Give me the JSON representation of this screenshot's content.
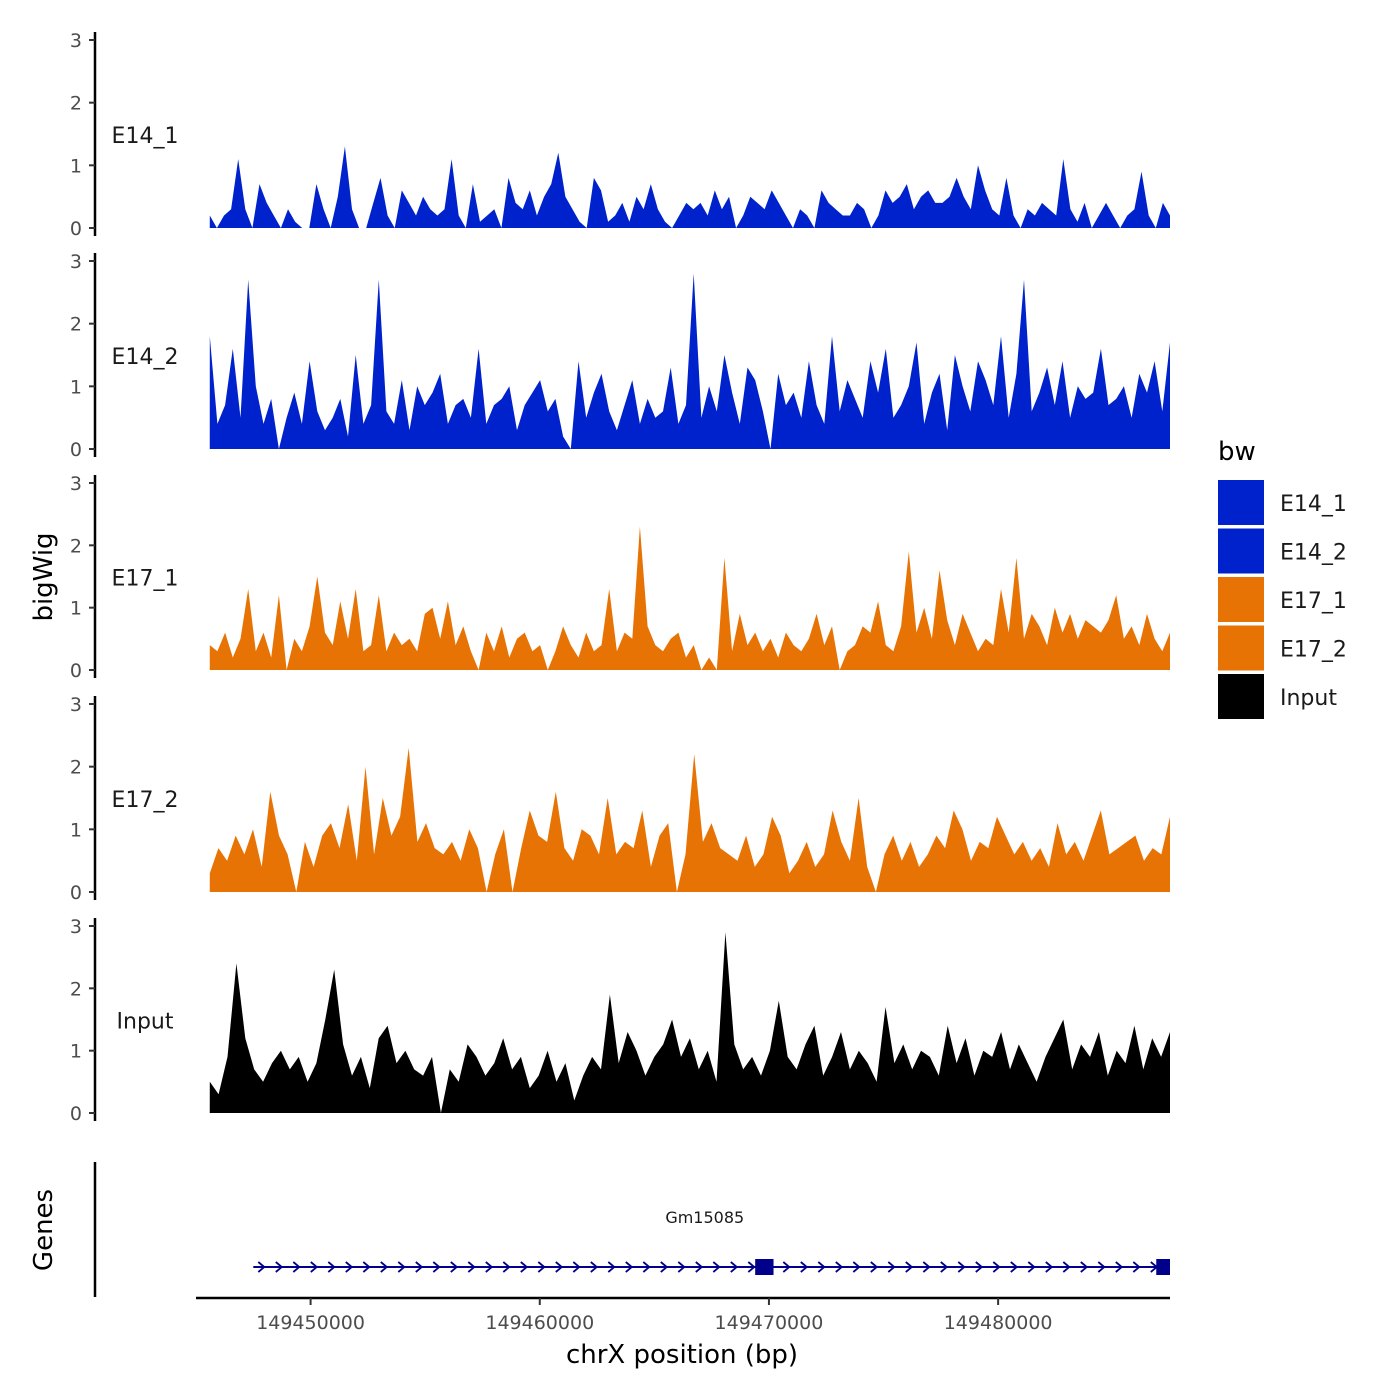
{
  "chart_data": {
    "type": "area",
    "chromosome": "chrX",
    "xlabel": "chrX position (bp)",
    "ylabel": "bigWig",
    "genes_label": "Genes",
    "xlim": [
      149445000,
      149487500
    ],
    "data_xrange": [
      149445600,
      149487500
    ],
    "xticks": [
      149450000,
      149460000,
      149470000,
      149480000
    ],
    "xtick_labels": [
      "149450000",
      "149460000",
      "149470000",
      "149480000"
    ],
    "ylim": [
      0,
      3
    ],
    "yticks": [
      0,
      1,
      2,
      3
    ],
    "ytick_labels": [
      "0",
      "1",
      "2",
      "3"
    ],
    "legend": {
      "title": "bw",
      "position": "right",
      "entries": [
        {
          "label": "E14_1",
          "color": "#0022CC"
        },
        {
          "label": "E14_2",
          "color": "#0022CC"
        },
        {
          "label": "E17_1",
          "color": "#E87305"
        },
        {
          "label": "E17_2",
          "color": "#E87305"
        },
        {
          "label": "Input",
          "color": "#000000"
        }
      ]
    },
    "series": [
      {
        "name": "E14_1",
        "color": "#0022CC",
        "values": [
          0.2,
          0.0,
          0.2,
          0.3,
          1.1,
          0.3,
          0.0,
          0.7,
          0.4,
          0.2,
          0.0,
          0.3,
          0.1,
          0.0,
          0.0,
          0.7,
          0.3,
          0.0,
          0.5,
          1.3,
          0.3,
          0.0,
          0.0,
          0.4,
          0.8,
          0.2,
          0.0,
          0.6,
          0.4,
          0.2,
          0.5,
          0.3,
          0.2,
          0.3,
          1.1,
          0.2,
          0.0,
          0.7,
          0.1,
          0.2,
          0.3,
          0.0,
          0.8,
          0.4,
          0.3,
          0.6,
          0.2,
          0.5,
          0.7,
          1.2,
          0.5,
          0.3,
          0.1,
          0.0,
          0.8,
          0.6,
          0.1,
          0.2,
          0.4,
          0.1,
          0.5,
          0.3,
          0.7,
          0.3,
          0.1,
          0.0,
          0.2,
          0.4,
          0.3,
          0.4,
          0.2,
          0.6,
          0.3,
          0.5,
          0.0,
          0.2,
          0.5,
          0.4,
          0.3,
          0.6,
          0.4,
          0.2,
          0.0,
          0.3,
          0.2,
          0.0,
          0.6,
          0.4,
          0.3,
          0.2,
          0.2,
          0.4,
          0.3,
          0.0,
          0.2,
          0.6,
          0.4,
          0.5,
          0.7,
          0.3,
          0.5,
          0.6,
          0.4,
          0.4,
          0.5,
          0.8,
          0.5,
          0.3,
          1.0,
          0.6,
          0.3,
          0.2,
          0.8,
          0.2,
          0.0,
          0.3,
          0.2,
          0.4,
          0.3,
          0.2,
          1.1,
          0.3,
          0.1,
          0.4,
          0.0,
          0.2,
          0.4,
          0.2,
          0.0,
          0.2,
          0.3,
          0.9,
          0.2,
          0.0,
          0.4,
          0.2
        ]
      },
      {
        "name": "E14_2",
        "color": "#0022CC",
        "values": [
          1.8,
          0.4,
          0.7,
          1.6,
          0.5,
          2.7,
          1.0,
          0.4,
          0.8,
          0.0,
          0.5,
          0.9,
          0.4,
          1.4,
          0.6,
          0.3,
          0.5,
          0.8,
          0.2,
          1.5,
          0.4,
          0.7,
          2.7,
          0.6,
          0.4,
          1.1,
          0.3,
          1.0,
          0.7,
          0.9,
          1.2,
          0.4,
          0.7,
          0.8,
          0.5,
          1.6,
          0.4,
          0.7,
          0.8,
          1.0,
          0.3,
          0.7,
          0.9,
          1.1,
          0.6,
          0.8,
          0.2,
          0.0,
          1.4,
          0.5,
          0.9,
          1.2,
          0.6,
          0.3,
          0.7,
          1.1,
          0.4,
          0.8,
          0.5,
          0.6,
          1.3,
          0.4,
          0.7,
          2.8,
          0.5,
          1.0,
          0.6,
          1.5,
          0.9,
          0.4,
          1.3,
          1.1,
          0.6,
          0.0,
          1.2,
          0.7,
          0.9,
          0.5,
          1.4,
          0.7,
          0.4,
          1.8,
          0.6,
          1.1,
          0.8,
          0.5,
          1.4,
          0.9,
          1.6,
          0.5,
          0.7,
          1.0,
          1.7,
          0.4,
          0.9,
          1.2,
          0.3,
          1.5,
          1.0,
          0.6,
          1.4,
          1.1,
          0.7,
          1.8,
          0.5,
          1.2,
          2.7,
          0.6,
          0.9,
          1.3,
          0.7,
          1.4,
          0.5,
          1.0,
          0.8,
          0.9,
          1.6,
          0.7,
          0.8,
          1.0,
          0.5,
          1.2,
          0.9,
          1.4,
          0.6,
          1.7
        ]
      },
      {
        "name": "E17_1",
        "color": "#E87305",
        "values": [
          0.4,
          0.3,
          0.6,
          0.2,
          0.5,
          1.3,
          0.3,
          0.6,
          0.2,
          1.2,
          0.0,
          0.5,
          0.3,
          0.7,
          1.5,
          0.6,
          0.4,
          1.1,
          0.5,
          1.3,
          0.3,
          0.4,
          1.2,
          0.3,
          0.6,
          0.4,
          0.5,
          0.3,
          0.9,
          1.0,
          0.5,
          1.1,
          0.4,
          0.7,
          0.3,
          0.0,
          0.6,
          0.3,
          0.7,
          0.2,
          0.5,
          0.6,
          0.3,
          0.4,
          0.0,
          0.3,
          0.7,
          0.4,
          0.2,
          0.6,
          0.3,
          0.4,
          1.3,
          0.3,
          0.6,
          0.5,
          2.3,
          0.7,
          0.4,
          0.3,
          0.5,
          0.6,
          0.2,
          0.4,
          0.0,
          0.2,
          0.0,
          1.8,
          0.3,
          0.9,
          0.4,
          0.6,
          0.3,
          0.5,
          0.2,
          0.6,
          0.4,
          0.3,
          0.5,
          0.9,
          0.4,
          0.7,
          0.0,
          0.3,
          0.4,
          0.7,
          0.6,
          1.1,
          0.4,
          0.3,
          0.7,
          1.9,
          0.6,
          1.0,
          0.5,
          1.6,
          0.8,
          0.4,
          0.9,
          0.6,
          0.3,
          0.5,
          0.4,
          1.3,
          0.6,
          1.8,
          0.5,
          0.9,
          0.7,
          0.4,
          1.0,
          0.6,
          0.9,
          0.5,
          0.8,
          0.7,
          0.6,
          0.8,
          1.2,
          0.5,
          0.7,
          0.4,
          0.9,
          0.5,
          0.3,
          0.6
        ]
      },
      {
        "name": "E17_2",
        "color": "#E87305",
        "values": [
          0.3,
          0.7,
          0.5,
          0.9,
          0.6,
          1.0,
          0.4,
          1.6,
          0.9,
          0.6,
          0.0,
          0.8,
          0.4,
          0.9,
          1.1,
          0.7,
          1.4,
          0.5,
          2.0,
          0.6,
          1.5,
          0.9,
          1.2,
          2.3,
          0.8,
          1.1,
          0.7,
          0.6,
          0.8,
          0.5,
          1.0,
          0.7,
          0.0,
          0.6,
          1.0,
          0.0,
          0.7,
          1.3,
          0.9,
          0.8,
          1.6,
          0.7,
          0.5,
          1.0,
          0.9,
          0.6,
          1.5,
          0.6,
          0.8,
          0.7,
          1.3,
          0.4,
          0.9,
          1.1,
          0.0,
          0.6,
          2.2,
          0.8,
          1.1,
          0.7,
          0.6,
          0.5,
          0.9,
          0.4,
          0.6,
          1.2,
          0.9,
          0.3,
          0.5,
          0.8,
          0.4,
          0.6,
          1.3,
          0.8,
          0.5,
          1.5,
          0.4,
          0.0,
          0.6,
          0.9,
          0.5,
          0.8,
          0.4,
          0.6,
          0.9,
          0.7,
          1.3,
          1.0,
          0.5,
          0.8,
          0.7,
          1.2,
          0.9,
          0.6,
          0.8,
          0.5,
          0.7,
          0.4,
          1.1,
          0.6,
          0.8,
          0.5,
          0.9,
          1.3,
          0.6,
          0.7,
          0.8,
          0.9,
          0.5,
          0.7,
          0.6,
          1.2
        ]
      },
      {
        "name": "Input",
        "color": "#000000",
        "values": [
          0.5,
          0.3,
          0.9,
          2.4,
          1.2,
          0.7,
          0.5,
          0.8,
          1.0,
          0.7,
          0.9,
          0.5,
          0.8,
          1.5,
          2.3,
          1.1,
          0.6,
          0.9,
          0.4,
          1.2,
          1.4,
          0.8,
          1.0,
          0.7,
          0.6,
          0.9,
          0.0,
          0.7,
          0.5,
          1.1,
          0.9,
          0.6,
          0.8,
          1.2,
          0.7,
          0.9,
          0.4,
          0.6,
          1.0,
          0.5,
          0.8,
          0.2,
          0.6,
          0.9,
          0.7,
          1.9,
          0.8,
          1.3,
          1.0,
          0.6,
          0.9,
          1.1,
          1.5,
          0.9,
          1.2,
          0.7,
          1.0,
          0.5,
          2.9,
          1.1,
          0.7,
          0.9,
          0.6,
          1.0,
          1.8,
          0.9,
          0.7,
          1.1,
          1.4,
          0.6,
          0.9,
          1.3,
          0.7,
          1.0,
          0.8,
          0.5,
          1.7,
          0.8,
          1.1,
          0.7,
          1.0,
          0.9,
          0.6,
          1.4,
          0.8,
          1.2,
          0.6,
          1.0,
          0.9,
          1.3,
          0.7,
          1.1,
          0.8,
          0.5,
          0.9,
          1.2,
          1.5,
          0.7,
          1.1,
          0.9,
          1.3,
          0.6,
          1.0,
          0.8,
          1.4,
          0.7,
          1.2,
          0.9,
          1.3
        ]
      }
    ],
    "genes": [
      {
        "name": "Gm15085",
        "start": 149447500,
        "end": 149487500,
        "strand": "+",
        "exons": [
          [
            149469400,
            149470200
          ],
          [
            149486900,
            149487500
          ]
        ],
        "color": "#00008B"
      }
    ]
  }
}
